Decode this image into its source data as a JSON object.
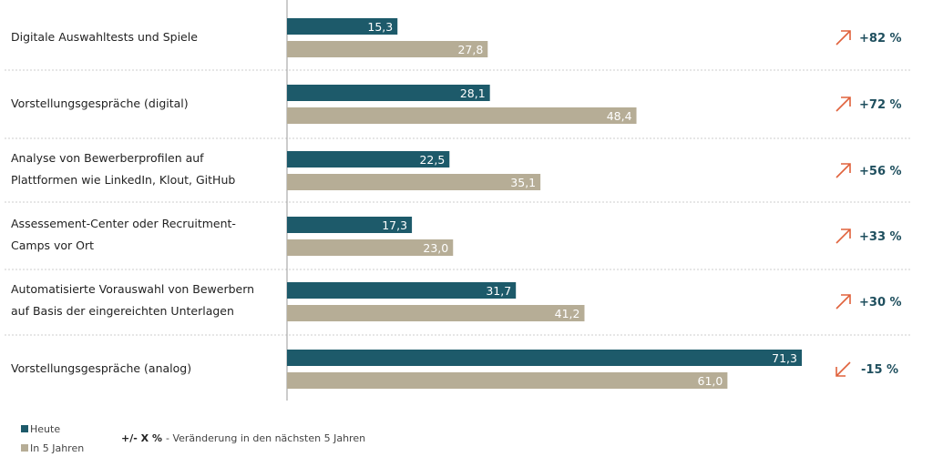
{
  "chart_data": {
    "type": "bar",
    "orientation": "horizontal",
    "categories": [
      [
        "Digitale Auswahltests und Spiele"
      ],
      [
        "Vorstellungsgespräche (digital)"
      ],
      [
        "Analyse von Bewerberprofilen auf",
        "Plattformen wie LinkedIn, Klout, GitHub"
      ],
      [
        "Assessement-Center oder Recruitment-",
        "Camps vor Ort"
      ],
      [
        "Automatisierte Vorauswahl von Bewerbern",
        "auf Basis der eingereichten Unterlagen"
      ],
      [
        "Vorstellungsgespräche (analog)"
      ]
    ],
    "series": [
      {
        "name": "Heute",
        "color": "#1d5a6a",
        "values": [
          15.3,
          28.1,
          22.5,
          17.3,
          31.7,
          71.3
        ],
        "labels": [
          "15,3",
          "28,1",
          "22,5",
          "17,3",
          "31,7",
          "71,3"
        ]
      },
      {
        "name": "In 5 Jahren",
        "color": "#b6ad96",
        "values": [
          27.8,
          48.4,
          35.1,
          23.0,
          41.2,
          61.0
        ],
        "labels": [
          "27,8",
          "48,4",
          "35,1",
          "23,0",
          "41,2",
          "61,0"
        ]
      }
    ],
    "changes": [
      {
        "text": "+82 %",
        "direction": "up"
      },
      {
        "text": "+72 %",
        "direction": "up"
      },
      {
        "text": "+56 %",
        "direction": "up"
      },
      {
        "text": "+33 %",
        "direction": "up"
      },
      {
        "text": "+30 %",
        "direction": "up"
      },
      {
        "text": "-15 %",
        "direction": "down"
      }
    ],
    "arrow_color": "#e0623c",
    "legend": {
      "items": [
        "Heute",
        "In 5 Jahren"
      ],
      "placement": "bottom-left"
    },
    "note": {
      "symbol": "+/- X %",
      "text": "- Veränderung in den nächsten 5 Jahren"
    },
    "xlim": [
      0,
      75
    ],
    "grid": false
  }
}
